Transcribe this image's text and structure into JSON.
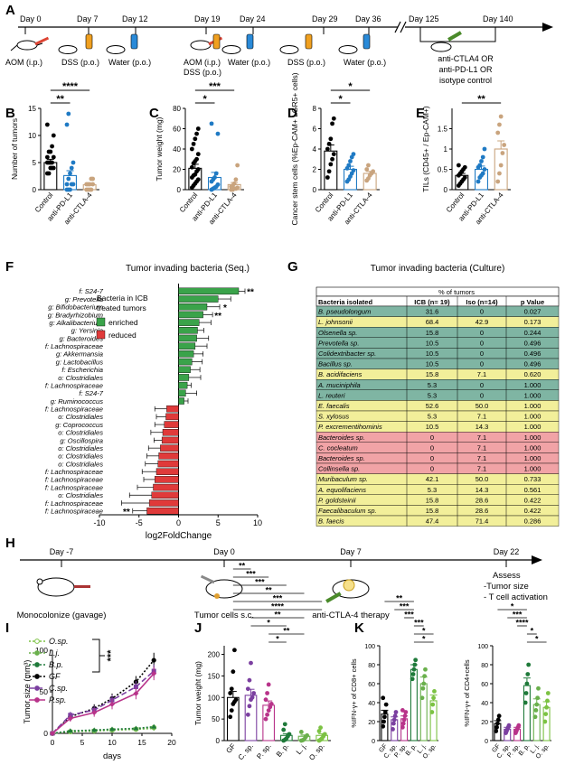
{
  "panel_letters": [
    "A",
    "B",
    "C",
    "D",
    "E",
    "F",
    "G",
    "H",
    "I",
    "J",
    "K"
  ],
  "timeline_a": {
    "days": [
      "Day 0",
      "Day 7",
      "Day 12",
      "Day 19",
      "Day 24",
      "Day 29",
      "Day 36",
      "Day 125",
      "Day 140"
    ],
    "treatments": [
      "AOM (i.p.)",
      "DSS (p.o.)",
      "Water (p.o.)",
      "AOM (i.p.)",
      "DSS (p.o.)",
      "Water (p.o.)",
      "DSS (p.o.)",
      "Water (p.o.)"
    ],
    "therapy_lines": [
      "anti-CTLA4 OR",
      "anti-PD-L1 OR",
      "isotype control"
    ]
  },
  "chart_data": [
    {
      "id": "B",
      "type": "scatter-bar",
      "ylabel": "Number of tumors",
      "ylim": [
        0,
        15
      ],
      "yticks": [
        0,
        5,
        10,
        15
      ],
      "categories": [
        "Control",
        "anti-PD-L1",
        "anti-CTLA-4"
      ],
      "means": [
        5.0,
        2.6,
        0.9
      ],
      "sems": [
        0.6,
        0.9,
        0.3
      ],
      "colors": [
        "#000000",
        "#1f7ac4",
        "#c9a47e"
      ],
      "points": [
        [
          3,
          3,
          4,
          4,
          4,
          5,
          5,
          5,
          5,
          6,
          6,
          7,
          7,
          8,
          10,
          12
        ],
        [
          0,
          0,
          0,
          1,
          1,
          1,
          2,
          3,
          4,
          5,
          12,
          14
        ],
        [
          0,
          0,
          0,
          0,
          1,
          1,
          1,
          1,
          2,
          2
        ]
      ],
      "sig": [
        {
          "a": 0,
          "b": 1,
          "label": "**"
        },
        {
          "a": 0,
          "b": 2,
          "label": "****"
        }
      ]
    },
    {
      "id": "C",
      "type": "scatter-bar",
      "ylabel": "Tumor weight (mg)",
      "ylim": [
        0,
        80
      ],
      "yticks": [
        0,
        20,
        40,
        60,
        80
      ],
      "categories": [
        "Control",
        "anti-PD-L1",
        "anti-CTLA-4"
      ],
      "means": [
        21,
        12,
        5
      ],
      "sems": [
        4,
        5,
        2
      ],
      "colors": [
        "#000000",
        "#1f7ac4",
        "#c9a47e"
      ],
      "points": [
        [
          2,
          4,
          6,
          8,
          10,
          12,
          14,
          15,
          18,
          20,
          22,
          26,
          28,
          30,
          35,
          40,
          45,
          50,
          55,
          60
        ],
        [
          0,
          1,
          2,
          3,
          5,
          8,
          10,
          12,
          16,
          55,
          65
        ],
        [
          0,
          0,
          1,
          1,
          2,
          3,
          4,
          6,
          10,
          24
        ]
      ],
      "sig": [
        {
          "a": 0,
          "b": 1,
          "label": "*"
        },
        {
          "a": 0,
          "b": 2,
          "label": "***"
        }
      ]
    },
    {
      "id": "D",
      "type": "scatter-bar",
      "ylabel": "Cancer stem cells (%Ep-CAM+ LGR5+ cells)",
      "ylim": [
        0,
        8
      ],
      "yticks": [
        0,
        2,
        4,
        6,
        8
      ],
      "categories": [
        "Control",
        "anti-PD-L1",
        "anti-CTLA-4"
      ],
      "means": [
        3.8,
        2.0,
        1.6
      ],
      "sems": [
        0.6,
        0.3,
        0.2
      ],
      "colors": [
        "#000000",
        "#1f7ac4",
        "#c9a47e"
      ],
      "points": [
        [
          1.2,
          1.8,
          2.5,
          3.0,
          3.5,
          4.0,
          4.5,
          5.0,
          6.5,
          7.0
        ],
        [
          0.8,
          1.0,
          1.3,
          1.6,
          1.9,
          2.1,
          2.4,
          2.8,
          3.2,
          3.5
        ],
        [
          0.9,
          1.1,
          1.4,
          1.6,
          1.8,
          2.0,
          2.4
        ]
      ],
      "sig": [
        {
          "a": 0,
          "b": 1,
          "label": "*"
        },
        {
          "a": 0,
          "b": 2,
          "label": "*"
        }
      ]
    },
    {
      "id": "E",
      "type": "scatter-bar",
      "ylabel": "TILs (CD45+ / Ep-CAM+)",
      "ylim": [
        0,
        2.0
      ],
      "yticks": [
        0,
        0.5,
        1.0,
        1.5
      ],
      "categories": [
        "Control",
        "anti-PD-L1",
        "anti-CTLA-4"
      ],
      "means": [
        0.35,
        0.5,
        1.0
      ],
      "sems": [
        0.05,
        0.08,
        0.2
      ],
      "colors": [
        "#000000",
        "#1f7ac4",
        "#c9a47e"
      ],
      "points": [
        [
          0.1,
          0.15,
          0.2,
          0.25,
          0.3,
          0.35,
          0.4,
          0.45,
          0.5,
          0.55,
          0.6
        ],
        [
          0.2,
          0.3,
          0.35,
          0.4,
          0.5,
          0.55,
          0.6,
          0.7,
          0.8,
          1.0
        ],
        [
          0.2,
          0.4,
          0.6,
          0.9,
          1.1,
          1.4,
          1.6,
          1.8
        ]
      ],
      "sig": [
        {
          "a": 0,
          "b": 2,
          "label": "**"
        }
      ]
    },
    {
      "id": "F",
      "type": "bar",
      "title": "Tumor invading bacteria (Seq.)",
      "xlabel": "log2FoldChange",
      "xlim": [
        -10,
        10
      ],
      "xticks": [
        -10,
        -5,
        0,
        5,
        10
      ],
      "legend_title": [
        "Bacteria in ICB",
        "treated tumors"
      ],
      "legend": [
        {
          "label": "enriched",
          "color": "#3aa34a"
        },
        {
          "label": "reduced",
          "color": "#e03a3a"
        }
      ],
      "categories": [
        "f: S24-7",
        "g: Prevotella",
        "g: Bifidobacterium",
        "g: Bradyrhizobium",
        "g: Alkalibacterium",
        "g: Yersinia",
        "g: Bacteroides",
        "f: Lachnospiraceae",
        "g: Akkermansia",
        "g: Lactobacillus",
        "f: Escherichia",
        "o: Clostridiales",
        "f: Lachnospiraceae",
        "f: S24-7",
        "g: Ruminococcus",
        "f: Lachnospiraceae",
        "o: Clostridiales",
        "g: Coprococcus",
        "o: Clostridiales",
        "g: Oscillospira",
        "o: Clostridiales",
        "o: Clostridiales",
        "o: Clostridiales",
        "f: Lachnospiraceae",
        "f: Lachnospiraceae",
        "f: Lachnospiraceae",
        "o: Clostridiales",
        "f: Lachnospiraceae",
        "f: Lachnospiraceae"
      ],
      "values": [
        7.6,
        5.0,
        3.6,
        3.1,
        2.6,
        2.4,
        2.3,
        2.1,
        1.9,
        1.7,
        1.5,
        1.3,
        1.1,
        0.9,
        0.7,
        -1.5,
        -1.6,
        -1.8,
        -2.0,
        -2.1,
        -2.3,
        -2.5,
        -2.6,
        -2.8,
        -3.0,
        -3.2,
        -3.4,
        -3.7,
        -4.0
      ],
      "errors": [
        0.8,
        1.6,
        1.6,
        1.2,
        1.5,
        0.8,
        1.5,
        1.5,
        1.2,
        1.3,
        1.2,
        1.5,
        0.5,
        1.4,
        0.5,
        1.5,
        1.2,
        1.2,
        1.5,
        1.0,
        1.5,
        1.5,
        1.6,
        1.8,
        1.4,
        2.0,
        2.8,
        3.5,
        1.8
      ],
      "sig_labels": [
        "**",
        "",
        "*",
        "**",
        "",
        "",
        "",
        "",
        "",
        "",
        "",
        "",
        "",
        "",
        "",
        "",
        "",
        "",
        "",
        "",
        "",
        "",
        "",
        "",
        "",
        "",
        "",
        "",
        "**"
      ]
    },
    {
      "id": "G",
      "type": "table",
      "title": "Tumor invading bacteria (Culture)",
      "group_header": "% of tumors",
      "columns": [
        "Bacteria isolated",
        "ICB (n= 19)",
        "Iso (n=14)",
        "p Value"
      ],
      "rows": [
        {
          "name": "B. pseudolongum",
          "icb": "31.6",
          "iso": "0",
          "p": "0.027",
          "color": "#7fb5a3"
        },
        {
          "name": "L. johnsonii",
          "icb": "68.4",
          "iso": "42.9",
          "p": "0.173",
          "color": "#f2ef9a"
        },
        {
          "name": "Olsenella sp.",
          "icb": "15.8",
          "iso": "0",
          "p": "0.244",
          "color": "#7fb5a3"
        },
        {
          "name": "Prevotella sp.",
          "icb": "10.5",
          "iso": "0",
          "p": "0.496",
          "color": "#7fb5a3"
        },
        {
          "name": "Colidextribacter sp.",
          "icb": "10.5",
          "iso": "0",
          "p": "0.496",
          "color": "#7fb5a3"
        },
        {
          "name": "Bacillus sp.",
          "icb": "10.5",
          "iso": "0",
          "p": "0.496",
          "color": "#7fb5a3"
        },
        {
          "name": "B. acidifaciens",
          "icb": "15.8",
          "iso": "7.1",
          "p": "0.620",
          "color": "#f2ef9a"
        },
        {
          "name": "A. muciniphila",
          "icb": "5.3",
          "iso": "0",
          "p": "1.000",
          "color": "#7fb5a3"
        },
        {
          "name": "L. reuteri",
          "icb": "5.3",
          "iso": "0",
          "p": "1.000",
          "color": "#7fb5a3"
        },
        {
          "name": "E. faecalis",
          "icb": "52.6",
          "iso": "50.0",
          "p": "1.000",
          "color": "#f2ef9a"
        },
        {
          "name": "S. xylosus",
          "icb": "5.3",
          "iso": "7.1",
          "p": "1.000",
          "color": "#f2ef9a"
        },
        {
          "name": "P. excrementihominis",
          "icb": "10.5",
          "iso": "14.3",
          "p": "1.000",
          "color": "#f2ef9a"
        },
        {
          "name": "Bacteroides sp.",
          "icb": "0",
          "iso": "7.1",
          "p": "1.000",
          "color": "#f1a3a6"
        },
        {
          "name": "C. cocleatum",
          "icb": "0",
          "iso": "7.1",
          "p": "1.000",
          "color": "#f1a3a6"
        },
        {
          "name": "Bacteroides sp.",
          "icb": "0",
          "iso": "7.1",
          "p": "1.000",
          "color": "#f1a3a6"
        },
        {
          "name": "Collinsella sp.",
          "icb": "0",
          "iso": "7.1",
          "p": "1.000",
          "color": "#f1a3a6"
        },
        {
          "name": "Muribaculum sp.",
          "icb": "42.1",
          "iso": "50.0",
          "p": "0.733",
          "color": "#f2ef9a"
        },
        {
          "name": "A. equolifaciens",
          "icb": "5.3",
          "iso": "14.3",
          "p": "0.561",
          "color": "#f2ef9a"
        },
        {
          "name": "P. goldsteinii",
          "icb": "15.8",
          "iso": "28.6",
          "p": "0.422",
          "color": "#f2ef9a"
        },
        {
          "name": "Faecalibaculum sp.",
          "icb": "15.8",
          "iso": "28.6",
          "p": "0.422",
          "color": "#f2ef9a"
        },
        {
          "name": "B. faecis",
          "icb": "47.4",
          "iso": "71.4",
          "p": "0.286",
          "color": "#f2ef9a"
        }
      ]
    },
    {
      "id": "I",
      "type": "line",
      "ylabel": "Tumor size (mm³)",
      "xlabel": "days",
      "xlim": [
        0,
        20
      ],
      "ylim": [
        0,
        100
      ],
      "xticks": [
        0,
        5,
        10,
        15,
        20
      ],
      "yticks": [
        0,
        50,
        100
      ],
      "x": [
        0,
        3,
        7,
        10,
        14,
        17
      ],
      "series": [
        {
          "name": "O.sp.",
          "color": "#7cc243",
          "dash": "2,2",
          "marker": "circle-open",
          "values": [
            0,
            2,
            3,
            4,
            5,
            7
          ],
          "errors": [
            0,
            1,
            1,
            1,
            1,
            2
          ]
        },
        {
          "name": "L.j.",
          "color": "#6ab04c",
          "dash": "2,2",
          "marker": "triangle-down",
          "values": [
            0,
            2,
            3,
            4,
            5,
            6
          ],
          "errors": [
            0,
            1,
            1,
            1,
            1,
            2
          ]
        },
        {
          "name": "B.p.",
          "color": "#1f7a3a",
          "dash": "2,2",
          "marker": "triangle",
          "values": [
            0,
            3,
            4,
            5,
            6,
            8
          ],
          "errors": [
            0,
            1,
            1,
            1,
            1,
            2
          ]
        },
        {
          "name": "GF",
          "color": "#000000",
          "dash": "2,2",
          "marker": "circle",
          "values": [
            0,
            20,
            30,
            42,
            62,
            88
          ],
          "errors": [
            0,
            4,
            5,
            6,
            7,
            9
          ]
        },
        {
          "name": "C.sp.",
          "color": "#7b3fa0",
          "dash": "6,3",
          "marker": "square",
          "values": [
            0,
            22,
            28,
            40,
            56,
            75
          ],
          "errors": [
            0,
            4,
            5,
            6,
            7,
            8
          ]
        },
        {
          "name": "P.sp.",
          "color": "#b8338a",
          "dash": "",
          "marker": "diamond",
          "values": [
            0,
            18,
            25,
            35,
            48,
            72
          ],
          "errors": [
            0,
            4,
            5,
            6,
            7,
            8
          ]
        }
      ],
      "sig": "***"
    },
    {
      "id": "J",
      "type": "scatter-bar",
      "ylabel": "Tumor weight (mg)",
      "ylim": [
        0,
        220
      ],
      "yticks": [
        0,
        50,
        100,
        150,
        200
      ],
      "categories": [
        "GF",
        "C. sp.",
        "P. sp.",
        "B. p.",
        "L. j.",
        "O. sp."
      ],
      "means": [
        100,
        105,
        82,
        12,
        10,
        12
      ],
      "sems": [
        14,
        14,
        10,
        4,
        3,
        4
      ],
      "colors": [
        "#000000",
        "#7b3fa0",
        "#b8338a",
        "#1f7a3a",
        "#6ab04c",
        "#7cc243"
      ],
      "points": [
        [
          55,
          70,
          85,
          90,
          95,
          110,
          120,
          160,
          210
        ],
        [
          60,
          80,
          95,
          100,
          110,
          120,
          140,
          180
        ],
        [
          50,
          60,
          70,
          78,
          85,
          95,
          110,
          130
        ],
        [
          0,
          2,
          5,
          10,
          15,
          25,
          38
        ],
        [
          0,
          1,
          3,
          8,
          12,
          20
        ],
        [
          0,
          2,
          5,
          10,
          15,
          22,
          30
        ]
      ],
      "sig_labels": [
        "**",
        "***",
        "***",
        "**",
        "***",
        "****",
        "**",
        "*",
        "**",
        "*"
      ]
    },
    {
      "id": "K1",
      "type": "scatter-bar",
      "ylabel": "%IFN-γ+ of CD8+ cells",
      "ylim": [
        0,
        100
      ],
      "yticks": [
        0,
        20,
        40,
        60,
        80,
        100
      ],
      "categories": [
        "GF",
        "C. sp.",
        "P. sp.",
        "B. p.",
        "L. j.",
        "O. sp."
      ],
      "means": [
        28,
        22,
        23,
        75,
        60,
        42
      ],
      "sems": [
        4,
        3,
        3,
        5,
        7,
        6
      ],
      "colors": [
        "#000000",
        "#7b3fa0",
        "#b8338a",
        "#1f7a3a",
        "#6ab04c",
        "#7cc243"
      ],
      "points": [
        [
          15,
          20,
          25,
          30,
          38,
          45
        ],
        [
          12,
          18,
          22,
          26,
          30
        ],
        [
          14,
          18,
          22,
          26,
          30,
          32
        ],
        [
          65,
          70,
          75,
          80,
          85
        ],
        [
          45,
          55,
          60,
          68,
          75
        ],
        [
          30,
          38,
          45,
          52
        ]
      ],
      "sig_labels": [
        "**",
        "***",
        "***",
        "***",
        "*",
        "*"
      ]
    },
    {
      "id": "K2",
      "type": "scatter-bar",
      "ylabel": "%IFN-γ+ of CD4+cells",
      "ylim": [
        0,
        100
      ],
      "yticks": [
        0,
        20,
        40,
        60,
        80,
        100
      ],
      "categories": [
        "GF",
        "C. sp.",
        "P. sp.",
        "B. p.",
        "L. j.",
        "O. sp."
      ],
      "means": [
        18,
        12,
        12,
        58,
        38,
        35
      ],
      "sems": [
        3,
        2,
        2,
        8,
        6,
        6
      ],
      "colors": [
        "#000000",
        "#7b3fa0",
        "#b8338a",
        "#1f7a3a",
        "#6ab04c",
        "#7cc243"
      ],
      "points": [
        [
          10,
          14,
          18,
          22,
          26
        ],
        [
          8,
          10,
          12,
          14,
          16
        ],
        [
          8,
          10,
          12,
          14,
          16
        ],
        [
          40,
          50,
          60,
          70,
          80
        ],
        [
          25,
          32,
          38,
          45,
          55
        ],
        [
          20,
          28,
          35,
          42,
          50
        ]
      ],
      "sig_labels": [
        "*",
        "***",
        "****",
        "*",
        "*"
      ]
    }
  ],
  "timeline_h": {
    "days": [
      "Day -7",
      "Day 0",
      "Day 7",
      "Day 22"
    ],
    "steps": [
      "Monocolonize (gavage)",
      "Tumor cells s.c.",
      "anti-CTLA-4 therapy"
    ],
    "assess": [
      "Assess",
      "-Tumor size",
      "- T cell activation"
    ]
  }
}
